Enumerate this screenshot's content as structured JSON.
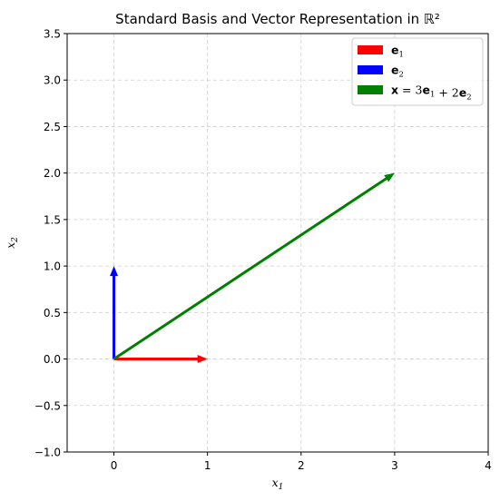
{
  "chart_data": {
    "type": "quiver",
    "title": "Standard Basis and Vector Representation in ℝ²",
    "xlabel_main": "x",
    "xlabel_sub": "1",
    "ylabel_main": "x",
    "ylabel_sub": "2",
    "xlim": [
      -0.5,
      4
    ],
    "ylim": [
      -1.0,
      3.5
    ],
    "xticks": [
      0,
      1,
      2,
      3,
      4
    ],
    "xtick_labels": [
      "0",
      "1",
      "2",
      "3",
      "4"
    ],
    "yticks": [
      -1.0,
      -0.5,
      0.0,
      0.5,
      1.0,
      1.5,
      2.0,
      2.5,
      3.0,
      3.5
    ],
    "ytick_labels": [
      "−1.0",
      "−0.5",
      "0.0",
      "0.5",
      "1.0",
      "1.5",
      "2.0",
      "2.5",
      "3.0",
      "3.5"
    ],
    "grid": true,
    "legend_position": "top-right",
    "series": [
      {
        "name": "e1",
        "legend": [
          {
            "t": "e",
            "bold": true
          },
          {
            "t": "1",
            "sub": true
          }
        ],
        "color": "#ff0000",
        "origin": [
          0,
          0
        ],
        "vector": [
          1,
          0
        ]
      },
      {
        "name": "e2",
        "legend": [
          {
            "t": "e",
            "bold": true
          },
          {
            "t": "2",
            "sub": true
          }
        ],
        "color": "#0000ff",
        "origin": [
          0,
          0
        ],
        "vector": [
          0,
          1
        ]
      },
      {
        "name": "x = 3e1 + 2e2",
        "legend": [
          {
            "t": "x",
            "bold": true
          },
          {
            "t": " = 3"
          },
          {
            "t": "e",
            "bold": true
          },
          {
            "t": "1",
            "sub": true
          },
          {
            "t": " + 2"
          },
          {
            "t": "e",
            "bold": true
          },
          {
            "t": "2",
            "sub": true
          }
        ],
        "color": "#008000",
        "origin": [
          0,
          0
        ],
        "vector": [
          3,
          2
        ]
      }
    ]
  }
}
